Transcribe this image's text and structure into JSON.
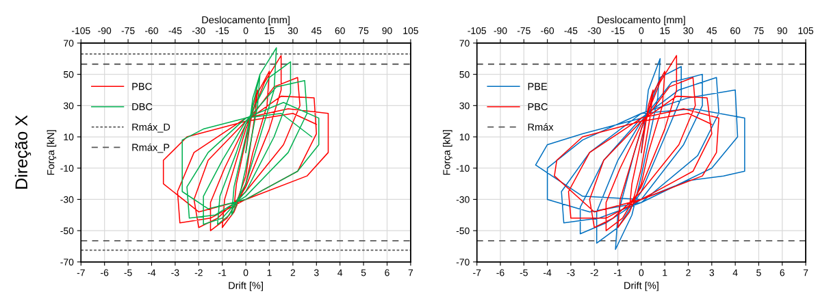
{
  "chart_data": [
    {
      "type": "line",
      "xlabel": "Drift [%]",
      "ylabel": "Força [kN]",
      "x2label": "Deslocamento [mm]",
      "annotations": [
        "Direção X"
      ],
      "xlim": [
        -7,
        7
      ],
      "xticks": [
        -7,
        -6,
        -5,
        -4,
        -3,
        -2,
        -1,
        0,
        1,
        2,
        3,
        4,
        5,
        6,
        7
      ],
      "x2lim": [
        -105,
        105
      ],
      "x2ticks": [
        -105,
        -90,
        -75,
        -60,
        -45,
        -30,
        -15,
        0,
        15,
        30,
        45,
        60,
        75,
        90,
        105
      ],
      "ylim": [
        -70,
        70
      ],
      "yticks": [
        -70,
        -50,
        -30,
        -10,
        10,
        30,
        50,
        70
      ],
      "grid": true,
      "legend": "top left",
      "series": [
        {
          "name": "PBC",
          "color": "#ff0000",
          "x": [
            0,
            0.3,
            0.5,
            0.4,
            0,
            -0.3,
            -0.5,
            -0.4,
            0,
            0.5,
            1.0,
            0.9,
            0.3,
            0,
            -0.5,
            -1.0,
            -0.9,
            -0.3,
            0,
            0.8,
            1.5,
            1.5,
            1.0,
            0,
            -0.8,
            -1.5,
            -1.5,
            -0.9,
            0,
            1.2,
            2.2,
            2.3,
            1.6,
            0,
            -1.2,
            -2.0,
            -2.2,
            -1.6,
            0,
            1.5,
            2.9,
            3.0,
            2.2,
            0,
            -1.5,
            -2.8,
            -2.9,
            -2.2,
            0,
            1.8,
            3.5,
            3.5,
            2.6,
            0,
            -2.0,
            -3.5,
            -3.5,
            -2.5,
            0,
            2.0,
            3.0
          ],
          "values": [
            0,
            30,
            40,
            25,
            -15,
            -28,
            -35,
            -20,
            8,
            38,
            52,
            30,
            0,
            -20,
            -38,
            -48,
            -30,
            0,
            15,
            45,
            62,
            40,
            15,
            -22,
            -42,
            -50,
            -32,
            -10,
            18,
            42,
            48,
            30,
            5,
            -25,
            -42,
            -48,
            -30,
            -5,
            20,
            36,
            35,
            12,
            -12,
            -30,
            -42,
            -45,
            -25,
            0,
            22,
            28,
            25,
            0,
            -15,
            -30,
            -38,
            -20,
            -5,
            10,
            20,
            25,
            18
          ]
        },
        {
          "name": "DBC",
          "color": "#00b050",
          "x": [
            0,
            0.3,
            0.6,
            0.5,
            0,
            -0.3,
            -0.6,
            -0.5,
            0,
            0.6,
            1.3,
            1.2,
            0.5,
            0,
            -0.7,
            -1.2,
            -1.1,
            -0.4,
            0,
            1.0,
            1.9,
            1.9,
            1.2,
            0,
            -1.0,
            -1.8,
            -1.8,
            -1.0,
            0,
            1.3,
            2.5,
            2.6,
            1.8,
            0,
            -1.3,
            -2.4,
            -2.5,
            -1.6,
            0,
            1.6,
            3.1,
            3.1,
            2.2,
            0,
            -1.6,
            -2.7,
            -2.7,
            -1.8,
            0,
            1.5,
            2.8
          ],
          "values": [
            0,
            35,
            50,
            30,
            -10,
            -30,
            -40,
            -22,
            10,
            50,
            67,
            40,
            5,
            -20,
            -40,
            -46,
            -28,
            0,
            18,
            48,
            58,
            38,
            10,
            -25,
            -42,
            -46,
            -28,
            -5,
            20,
            42,
            46,
            25,
            0,
            -28,
            -40,
            -42,
            -22,
            0,
            22,
            32,
            22,
            5,
            -12,
            -30,
            -36,
            -25,
            8,
            15,
            22,
            25,
            10
          ]
        }
      ],
      "ref_lines": [
        {
          "axis": "y",
          "value": 63,
          "label": "Rmáx_D",
          "color": "#595959",
          "line_style": "dotted"
        },
        {
          "axis": "y",
          "value": -62.5,
          "color": "#595959",
          "line_style": "dotted"
        },
        {
          "axis": "y",
          "value": 56.5,
          "label": "Rmáx_P",
          "color": "#595959",
          "line_style": "dashed"
        },
        {
          "axis": "y",
          "value": -56.5,
          "color": "#595959",
          "line_style": "dashed"
        }
      ]
    },
    {
      "type": "line",
      "xlabel": "Drift [%]",
      "ylabel": "Força [kN]",
      "x2label": "Deslocamento [mm]",
      "xlim": [
        -7,
        7
      ],
      "xticks": [
        -7,
        -6,
        -5,
        -4,
        -3,
        -2,
        -1,
        0,
        1,
        2,
        3,
        4,
        5,
        6,
        7
      ],
      "x2lim": [
        -105,
        105
      ],
      "x2ticks": [
        -105,
        -90,
        -75,
        -60,
        -45,
        -30,
        -15,
        0,
        15,
        30,
        45,
        60,
        75,
        90,
        105
      ],
      "ylim": [
        -70,
        70
      ],
      "yticks": [
        -70,
        -50,
        -30,
        -10,
        10,
        30,
        50,
        70
      ],
      "grid": true,
      "legend": "top left",
      "series": [
        {
          "name": "PBE",
          "color": "#0070c0",
          "x": [
            0,
            0.3,
            0.8,
            0.7,
            0,
            -0.4,
            -1.1,
            -1.0,
            -0.3,
            0,
            0.8,
            1.7,
            1.7,
            1.0,
            0,
            -1.0,
            -1.9,
            -1.9,
            -1.0,
            0,
            1.3,
            2.6,
            2.6,
            1.8,
            0,
            -1.5,
            -2.6,
            -2.6,
            -1.6,
            0,
            1.6,
            3.2,
            3.3,
            2.4,
            0,
            -1.8,
            -3.3,
            -3.4,
            -2.2,
            0,
            2.0,
            4.0,
            4.1,
            3.0,
            0,
            -2.2,
            -4.0,
            -4.0,
            -2.5,
            0,
            2.2,
            4.4,
            4.4,
            3.5,
            2.0,
            0,
            -2.5,
            -4.5,
            -4.0,
            -2.5,
            0
          ],
          "values": [
            0,
            40,
            60,
            35,
            -15,
            -40,
            -62,
            -40,
            0,
            15,
            48,
            55,
            35,
            10,
            -25,
            -48,
            -58,
            -38,
            -5,
            20,
            45,
            50,
            30,
            5,
            -30,
            -45,
            -52,
            -35,
            -5,
            22,
            40,
            48,
            25,
            -2,
            -32,
            -42,
            -45,
            -25,
            0,
            25,
            35,
            40,
            10,
            -10,
            -32,
            -38,
            -30,
            -10,
            8,
            25,
            28,
            22,
            -12,
            -15,
            -18,
            -30,
            -28,
            -8,
            5,
            12,
            22
          ]
        },
        {
          "name": "PBC",
          "color": "#ff0000",
          "x": [
            0,
            0.3,
            0.5,
            0.4,
            0,
            -0.3,
            -0.5,
            -0.4,
            0,
            0.5,
            1.0,
            0.9,
            0.3,
            0,
            -0.5,
            -1.0,
            -0.9,
            -0.3,
            0,
            0.8,
            1.5,
            1.5,
            1.0,
            0,
            -0.8,
            -1.5,
            -1.5,
            -0.9,
            0,
            1.2,
            2.2,
            2.3,
            1.6,
            0,
            -1.2,
            -2.0,
            -2.2,
            -1.6,
            0,
            1.5,
            2.8,
            3.0,
            2.2,
            0,
            -1.5,
            -3.0,
            -3.1,
            -2.2,
            0,
            1.8,
            3.3,
            3.2,
            2.6,
            0,
            -2.0,
            -3.7,
            -3.6,
            -2.5,
            0,
            2.0,
            3.0
          ],
          "values": [
            0,
            30,
            40,
            25,
            -10,
            -28,
            -35,
            -20,
            8,
            38,
            52,
            30,
            0,
            -20,
            -38,
            -48,
            -30,
            0,
            15,
            45,
            62,
            40,
            15,
            -22,
            -42,
            -50,
            -32,
            -10,
            18,
            42,
            48,
            30,
            5,
            -25,
            -42,
            -48,
            -30,
            -5,
            20,
            36,
            35,
            12,
            -12,
            -30,
            -42,
            -42,
            -25,
            0,
            22,
            28,
            22,
            0,
            -15,
            -30,
            -38,
            -15,
            -5,
            10,
            20,
            25,
            18
          ]
        }
      ],
      "ref_lines": [
        {
          "axis": "y",
          "value": 56.5,
          "label": "Rmáx",
          "color": "#595959",
          "line_style": "dashed"
        },
        {
          "axis": "y",
          "value": -56.5,
          "color": "#595959",
          "line_style": "dashed"
        }
      ]
    }
  ]
}
